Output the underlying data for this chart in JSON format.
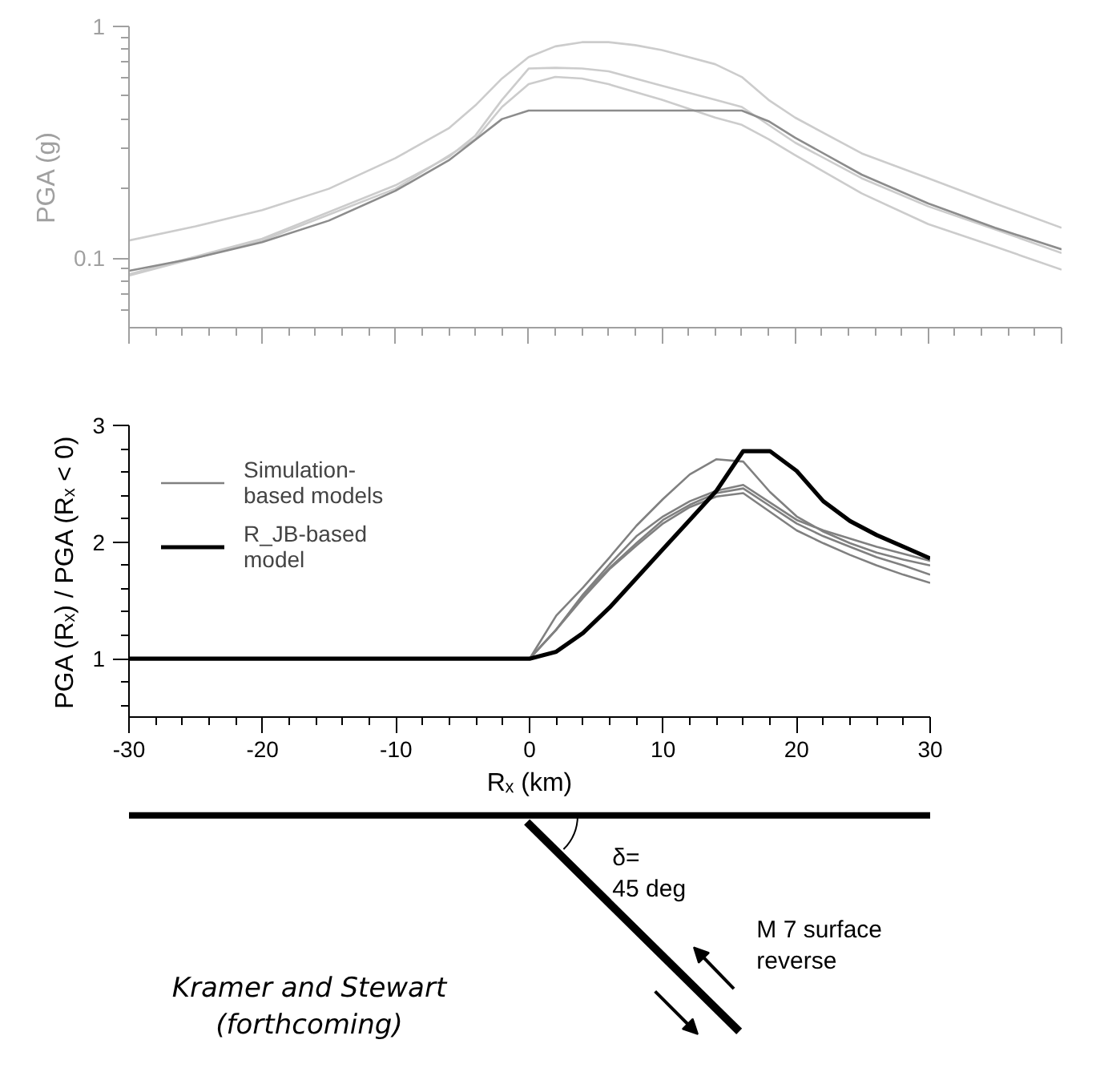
{
  "chart_data": [
    {
      "type": "line",
      "ylabel": "PGA (g)",
      "log": "y",
      "tick_labels": "y",
      "xlim": [
        -30,
        40
      ],
      "xticks": [
        -30,
        {
          "value": -28,
          "label": null
        },
        {
          "value": -26,
          "label": null
        },
        {
          "value": -24,
          "label": null
        },
        {
          "value": -22,
          "label": null
        },
        -20,
        {
          "value": -18,
          "label": null
        },
        {
          "value": -16,
          "label": null
        },
        {
          "value": -14,
          "label": null
        },
        {
          "value": -12,
          "label": null
        },
        -10,
        {
          "value": -8,
          "label": null
        },
        {
          "value": -6,
          "label": null
        },
        {
          "value": -4,
          "label": null
        },
        {
          "value": -2,
          "label": null
        },
        0,
        {
          "value": 2,
          "label": null
        },
        {
          "value": 4,
          "label": null
        },
        {
          "value": 6,
          "label": null
        },
        {
          "value": 8,
          "label": null
        },
        10,
        {
          "value": 12,
          "label": null
        },
        {
          "value": 14,
          "label": null
        },
        {
          "value": 16,
          "label": null
        },
        {
          "value": 18,
          "label": null
        },
        20,
        {
          "value": 22,
          "label": null
        },
        {
          "value": 24,
          "label": null
        },
        {
          "value": 26,
          "label": null
        },
        {
          "value": 28,
          "label": null
        },
        30,
        {
          "value": 32,
          "label": null
        },
        {
          "value": 34,
          "label": null
        },
        {
          "value": 36,
          "label": null
        },
        {
          "value": 38,
          "label": null
        },
        40
      ],
      "ylim": [
        0.05,
        1
      ],
      "yticks": [
        {
          "value": 0.06,
          "label": null
        },
        {
          "value": 0.07,
          "label": null
        },
        {
          "value": 0.08,
          "label": null
        },
        {
          "value": 0.09,
          "label": null
        },
        0.1,
        {
          "value": 0.2,
          "label": null
        },
        {
          "value": 0.3,
          "label": null
        },
        {
          "value": 0.4,
          "label": null
        },
        {
          "value": 0.5,
          "label": null
        },
        {
          "value": 0.6,
          "label": null
        },
        {
          "value": 0.7,
          "label": null
        },
        {
          "value": 0.8,
          "label": null
        },
        {
          "value": 0.9,
          "label": null
        },
        1
      ],
      "series": [
        {
          "color": "#cccccc",
          "x": [
            -30,
            -25,
            -20,
            -15,
            -10,
            -6,
            -4,
            -2,
            0,
            2,
            4,
            6,
            8,
            10,
            12,
            14,
            16,
            18,
            20,
            25,
            30,
            35,
            40
          ],
          "values": [
            0.119,
            0.137,
            0.161,
            0.199,
            0.27,
            0.363,
            0.456,
            0.596,
            0.737,
            0.82,
            0.855,
            0.855,
            0.83,
            0.79,
            0.737,
            0.687,
            0.605,
            0.482,
            0.404,
            0.283,
            0.221,
            0.172,
            0.135
          ]
        },
        {
          "color": "#cccccc",
          "x": [
            -30,
            -20,
            -10,
            -6,
            -4,
            -2,
            0,
            2,
            4,
            6,
            10,
            14,
            16,
            18,
            20,
            25,
            30,
            35,
            40
          ],
          "values": [
            0.085,
            0.121,
            0.206,
            0.273,
            0.338,
            0.482,
            0.658,
            0.663,
            0.658,
            0.64,
            0.555,
            0.482,
            0.449,
            0.376,
            0.315,
            0.221,
            0.167,
            0.133,
            0.105
          ]
        },
        {
          "color": "#cccccc",
          "x": [
            -30,
            -20,
            -10,
            -4,
            -2,
            0,
            2,
            4,
            6,
            10,
            14,
            16,
            18,
            20,
            25,
            30,
            35,
            40
          ],
          "values": [
            0.084,
            0.119,
            0.199,
            0.326,
            0.449,
            0.563,
            0.605,
            0.596,
            0.563,
            0.482,
            0.404,
            0.376,
            0.326,
            0.278,
            0.19,
            0.14,
            0.112,
            0.089
          ]
        },
        {
          "color": "#8c8c8c",
          "x": [
            -30,
            -25,
            -20,
            -15,
            -10,
            -6,
            -4,
            -2,
            0,
            16,
            18,
            20,
            25,
            30,
            35,
            40
          ],
          "values": [
            0.088,
            0.1,
            0.117,
            0.145,
            0.195,
            0.264,
            0.324,
            0.398,
            0.433,
            0.433,
            0.39,
            0.331,
            0.229,
            0.172,
            0.135,
            0.109
          ]
        }
      ]
    },
    {
      "type": "line",
      "xlabel": "Rₓ (km)",
      "ylabel": "PGA (Rₓ) / PGA (Rₓ < 0)",
      "legend": "top left",
      "xlim": [
        -30,
        30
      ],
      "xticks": [
        -30,
        {
          "value": -28,
          "label": null
        },
        {
          "value": -26,
          "label": null
        },
        {
          "value": -24,
          "label": null
        },
        {
          "value": -22,
          "label": null
        },
        -20,
        {
          "value": -18,
          "label": null
        },
        {
          "value": -16,
          "label": null
        },
        {
          "value": -14,
          "label": null
        },
        {
          "value": -12,
          "label": null
        },
        -10,
        {
          "value": -8,
          "label": null
        },
        {
          "value": -6,
          "label": null
        },
        {
          "value": -4,
          "label": null
        },
        {
          "value": -2,
          "label": null
        },
        0,
        {
          "value": 2,
          "label": null
        },
        {
          "value": 4,
          "label": null
        },
        {
          "value": 6,
          "label": null
        },
        {
          "value": 8,
          "label": null
        },
        10,
        {
          "value": 12,
          "label": null
        },
        {
          "value": 14,
          "label": null
        },
        {
          "value": 16,
          "label": null
        },
        {
          "value": 18,
          "label": null
        },
        20,
        {
          "value": 22,
          "label": null
        },
        {
          "value": 24,
          "label": null
        },
        {
          "value": 26,
          "label": null
        },
        {
          "value": 28,
          "label": null
        },
        30
      ],
      "ylim": [
        0.5,
        3
      ],
      "yticks": [
        {
          "value": 0.6,
          "label": null
        },
        {
          "value": 0.8,
          "label": null
        },
        1,
        {
          "value": 1.2,
          "label": null
        },
        {
          "value": 1.4,
          "label": null
        },
        {
          "value": 1.6,
          "label": null
        },
        {
          "value": 1.8,
          "label": null
        },
        2,
        {
          "value": 2.2,
          "label": null
        },
        {
          "value": 2.4,
          "label": null
        },
        {
          "value": 2.6,
          "label": null
        },
        {
          "value": 2.8,
          "label": null
        },
        3
      ],
      "x": [
        -30,
        0,
        2,
        4,
        6,
        8,
        10,
        12,
        14,
        16,
        18,
        20,
        22,
        24,
        26,
        28,
        30
      ],
      "series": [
        {
          "name": "Simulation-\nbased models",
          "color": "#808080",
          "values": [
            1,
            1,
            1.37,
            1.61,
            1.87,
            2.14,
            2.37,
            2.58,
            2.71,
            2.69,
            2.43,
            2.22,
            2.09,
            1.99,
            1.91,
            1.85,
            1.8
          ]
        },
        {
          "color": "#808080",
          "values": [
            1,
            1,
            1.25,
            1.55,
            1.81,
            2.05,
            2.22,
            2.35,
            2.44,
            2.49,
            2.34,
            2.19,
            2.1,
            2.03,
            1.96,
            1.9,
            1.84
          ]
        },
        {
          "color": "#808080",
          "values": [
            1,
            1,
            1.25,
            1.54,
            1.78,
            1.99,
            2.19,
            2.32,
            2.42,
            2.46,
            2.31,
            2.16,
            2.05,
            1.96,
            1.87,
            1.8,
            1.72
          ]
        },
        {
          "color": "#808080",
          "values": [
            1,
            1,
            1.25,
            1.52,
            1.77,
            1.97,
            2.16,
            2.3,
            2.39,
            2.42,
            2.26,
            2.1,
            1.99,
            1.89,
            1.8,
            1.72,
            1.65
          ]
        },
        {
          "name": "R_JB-based\nmodel",
          "color": "#000000",
          "values": [
            1,
            1,
            1.06,
            1.22,
            1.44,
            1.69,
            1.94,
            2.19,
            2.44,
            2.78,
            2.78,
            2.61,
            2.35,
            2.18,
            2.06,
            1.96,
            1.86
          ]
        }
      ]
    },
    {
      "type": "other",
      "annotations": [
        "δ=\n45 deg",
        "M 7 surface\nreverse",
        "Kramer and Stewart\n(forthcoming)"
      ]
    }
  ]
}
